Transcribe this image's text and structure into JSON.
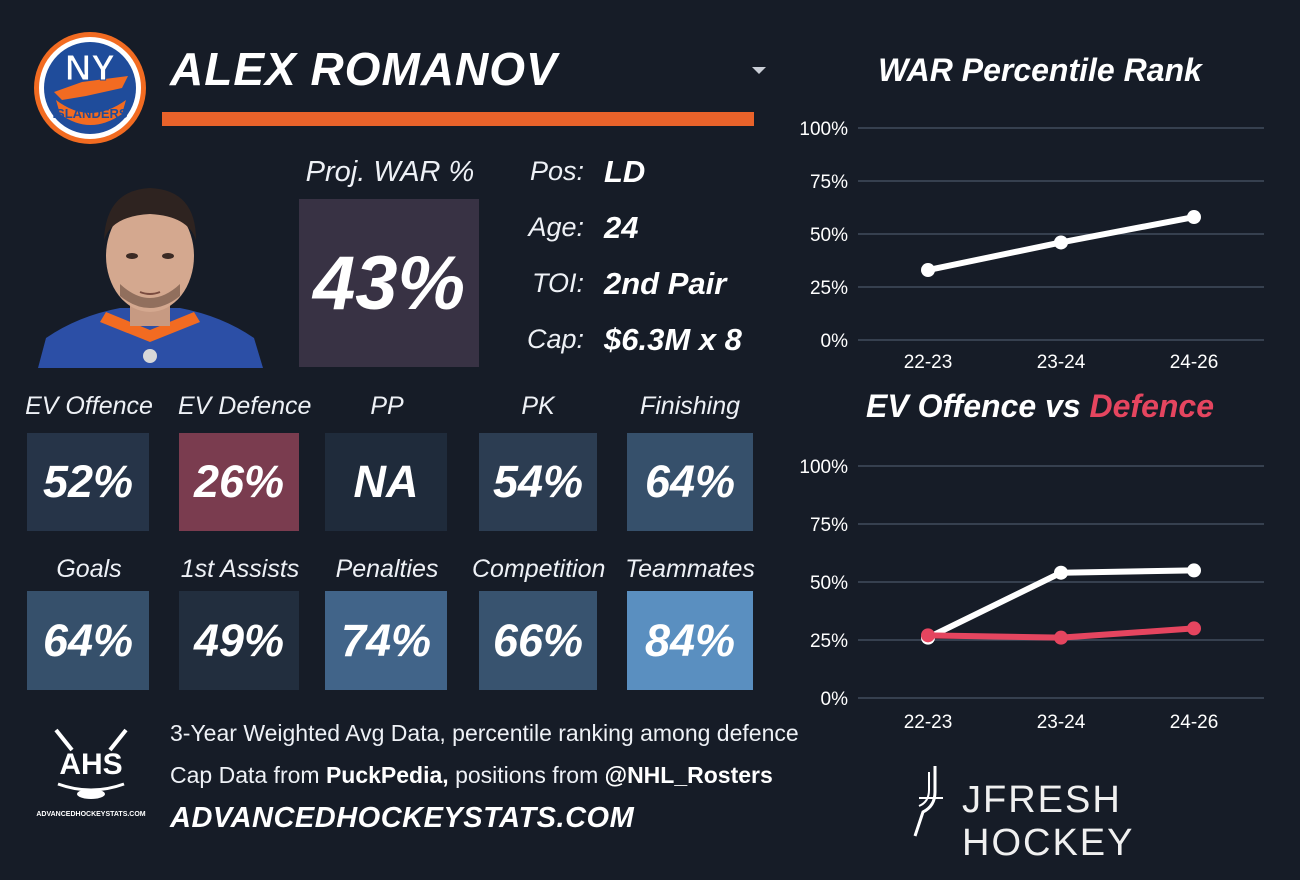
{
  "player": {
    "name": "ALEX ROMANOV",
    "team_logo_text": "NY ISLANDERS",
    "proj_war_label": "Proj. WAR %",
    "proj_war_value": "43%"
  },
  "info": [
    {
      "label": "Pos:",
      "value": "LD"
    },
    {
      "label": "Age:",
      "value": "24"
    },
    {
      "label": "TOI:",
      "value": "2nd Pair"
    },
    {
      "label": "Cap:",
      "value": "$6.3M x 8"
    }
  ],
  "tiles_row1": [
    {
      "label": "EV Offence",
      "value": "52%",
      "color": "#263448"
    },
    {
      "label": "EV Defence",
      "value": "26%",
      "color": "#7a3c4f"
    },
    {
      "label": "PP",
      "value": "NA",
      "color": "#1f2b3b"
    },
    {
      "label": "PK",
      "value": "54%",
      "color": "#2c3d52"
    },
    {
      "label": "Finishing",
      "value": "64%",
      "color": "#36506b"
    }
  ],
  "tiles_row2": [
    {
      "label": "Goals",
      "value": "64%",
      "color": "#36506b"
    },
    {
      "label": "1st Assists",
      "value": "49%",
      "color": "#222e3e"
    },
    {
      "label": "Penalties",
      "value": "74%",
      "color": "#416489"
    },
    {
      "label": "Competition",
      "value": "66%",
      "color": "#38536f"
    },
    {
      "label": "Teammates",
      "value": "84%",
      "color": "#5a8fc0"
    }
  ],
  "footer": {
    "line1": "3-Year Weighted Avg Data, percentile ranking among defence",
    "line2_pre": "Cap Data from ",
    "line2_bold1": "PuckPedia,",
    "line2_mid": " positions from ",
    "line2_bold2": "@NHL_Rosters",
    "site": "ADVANCEDHOCKEYSTATS.COM",
    "ahs_logo_text": "AHS",
    "ahs_logo_sub": "ADVANCEDHOCKEYSTATS.COM",
    "brand": "JFRESH HOCKEY"
  },
  "colors": {
    "accent_orange": "#e8622a",
    "proj_box": "#383244",
    "defence_red": "#e5455f",
    "line_white": "#ffffff",
    "grid": "#4a5567"
  },
  "chart_data": [
    {
      "type": "line",
      "title": "WAR Percentile Rank",
      "categories": [
        "22-23",
        "23-24",
        "24-26"
      ],
      "series": [
        {
          "values": [
            33,
            46,
            58
          ],
          "color": "#ffffff"
        }
      ],
      "ylim": [
        0,
        100
      ],
      "yticks": [
        "0%",
        "25%",
        "50%",
        "75%",
        "100%"
      ],
      "grid": true
    },
    {
      "type": "line",
      "title_parts": [
        "EV Offence vs ",
        "Defence"
      ],
      "categories": [
        "22-23",
        "23-24",
        "24-26"
      ],
      "series": [
        {
          "values": [
            26,
            54,
            55
          ],
          "color": "#ffffff"
        },
        {
          "values": [
            27,
            26,
            30
          ],
          "color": "#e5455f"
        }
      ],
      "ylim": [
        0,
        100
      ],
      "yticks": [
        "0%",
        "25%",
        "50%",
        "75%",
        "100%"
      ],
      "grid": true
    }
  ]
}
